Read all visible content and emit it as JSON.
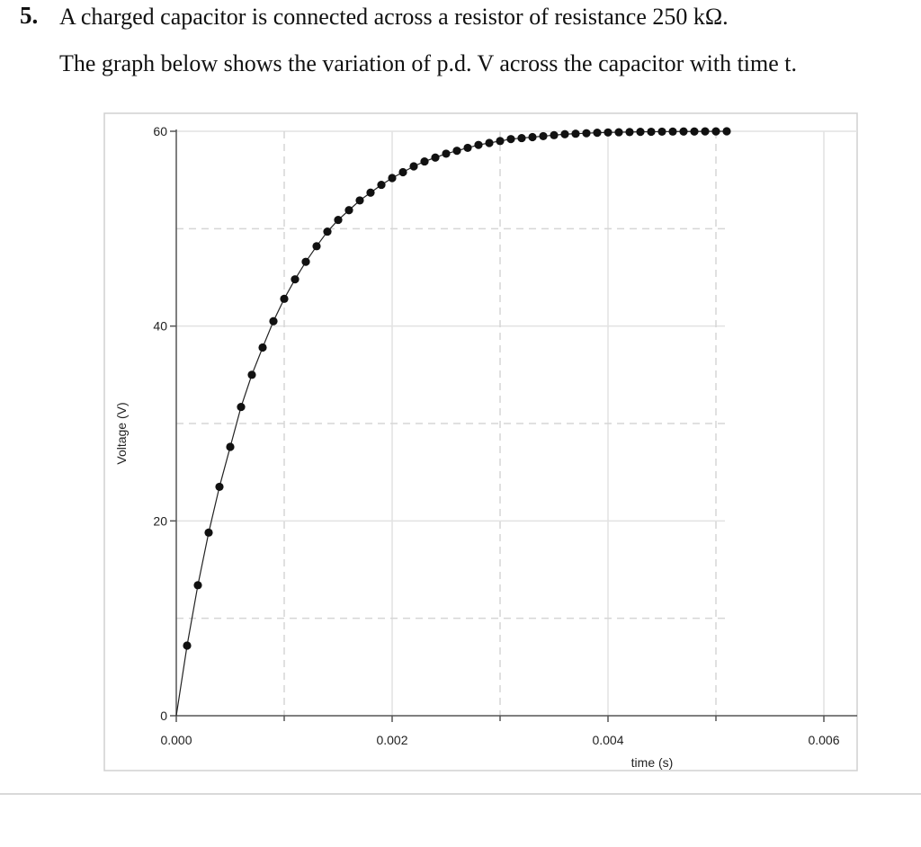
{
  "question": {
    "number": "5.",
    "line1": "A charged capacitor is connected across a resistor of resistance 250 kΩ.",
    "line2": "The graph below shows the variation of p.d. V across the capacitor with time t."
  },
  "chart_data": {
    "type": "scatter",
    "title": "",
    "xlabel": "time (s)",
    "ylabel": "Voltage (V)",
    "xlim": [
      0,
      0.006
    ],
    "ylim": [
      0,
      60
    ],
    "x_ticks": [
      0,
      0.002,
      0.004,
      0.006
    ],
    "x_tick_labels": [
      "0.000",
      "0.002",
      "0.004",
      "0.006"
    ],
    "y_ticks": [
      0,
      20,
      40,
      60
    ],
    "y_tick_labels": [
      "0",
      "20",
      "40",
      "60"
    ],
    "x_minor_dashed": [
      0.001,
      0.003,
      0.005
    ],
    "y_minor_dashed": [
      10,
      30,
      50
    ],
    "grid": true,
    "legend": "none",
    "connected": true,
    "series": [
      {
        "x": [
          0,
          0.0001,
          0.0002,
          0.0003,
          0.0004,
          0.0005,
          0.0006,
          0.0007,
          0.0008,
          0.0009,
          0.001,
          0.0011,
          0.0012,
          0.0013,
          0.0014,
          0.0015,
          0.0016,
          0.0017,
          0.0018,
          0.0019,
          0.002,
          0.0021,
          0.0022,
          0.0023,
          0.0024,
          0.0025,
          0.0026,
          0.0027,
          0.0028,
          0.0029,
          0.003,
          0.0031,
          0.0032,
          0.0033,
          0.0034,
          0.0035,
          0.0036,
          0.0037,
          0.0038,
          0.0039,
          0.004,
          0.0041,
          0.0042,
          0.0043,
          0.0044,
          0.0045,
          0.0046,
          0.0047,
          0.0048,
          0.0049,
          0.005,
          0.0051
        ],
        "y": [
          0,
          7.2,
          13.4,
          18.8,
          23.5,
          27.6,
          31.7,
          35.0,
          37.8,
          40.5,
          42.8,
          44.8,
          46.6,
          48.2,
          49.7,
          50.9,
          51.9,
          52.9,
          53.7,
          54.5,
          55.2,
          55.8,
          56.4,
          56.9,
          57.3,
          57.7,
          58.0,
          58.3,
          58.6,
          58.8,
          59.0,
          59.2,
          59.3,
          59.4,
          59.5,
          59.6,
          59.7,
          59.75,
          59.8,
          59.85,
          59.88,
          59.9,
          59.92,
          59.94,
          59.95,
          59.96,
          59.97,
          59.98,
          59.98,
          59.99,
          59.99,
          60.0
        ]
      }
    ]
  }
}
